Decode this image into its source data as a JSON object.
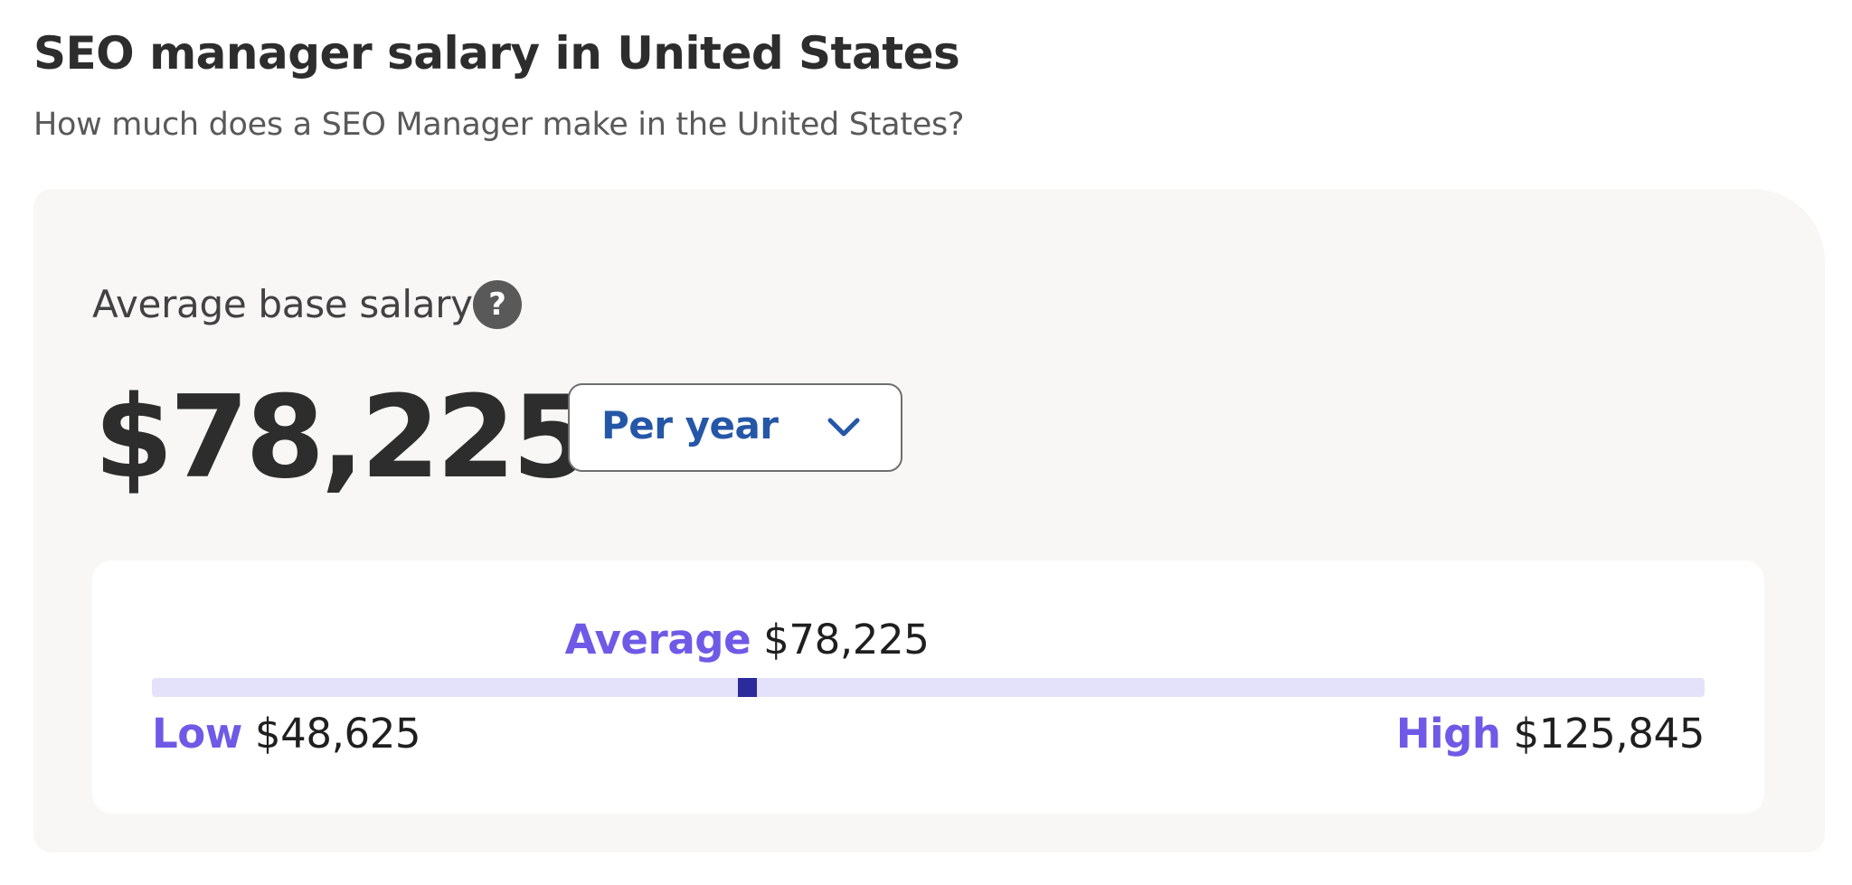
{
  "header": {
    "title": "SEO manager salary in United States",
    "subtitle": "How much does a SEO Manager make in the United States?"
  },
  "card": {
    "label": "Average base salary",
    "help": "?",
    "amount": "$78,225",
    "period": "Per year"
  },
  "range": {
    "average": {
      "label": "Average",
      "value": "$78,225"
    },
    "low": {
      "label": "Low",
      "value": "$48,625"
    },
    "high": {
      "label": "High",
      "value": "$125,845"
    }
  }
}
